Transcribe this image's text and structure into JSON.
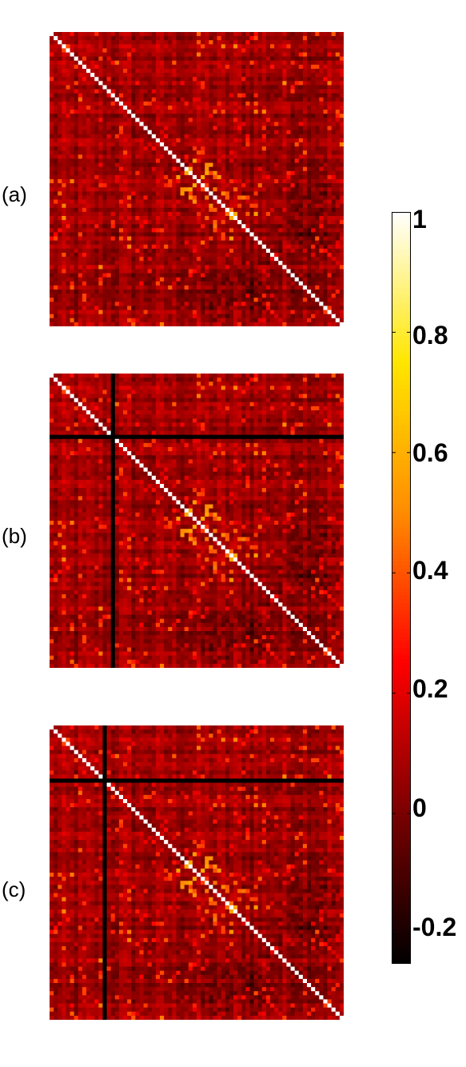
{
  "chart_data": {
    "type": "heatmap",
    "panels": [
      {
        "label": "(a)",
        "n": 72,
        "removed_index": null
      },
      {
        "label": "(b)",
        "n": 72,
        "removed_index": 15
      },
      {
        "label": "(c)",
        "n": 72,
        "removed_index": 13
      }
    ],
    "colorbar": {
      "min": -0.25,
      "max": 1,
      "ticks": [
        {
          "value": 1,
          "label": "1"
        },
        {
          "value": 0.8,
          "label": "0.8"
        },
        {
          "value": 0.6,
          "label": "0.6"
        },
        {
          "value": 0.4,
          "label": "0.4"
        },
        {
          "value": 0.2,
          "label": "0.2"
        },
        {
          "value": 0,
          "label": "0"
        },
        {
          "value": -0.2,
          "label": "-0.2"
        }
      ]
    },
    "colormap": [
      "#000000",
      "#7a0000",
      "#ff0000",
      "#ff8c00",
      "#ffe600",
      "#ffffff"
    ]
  }
}
